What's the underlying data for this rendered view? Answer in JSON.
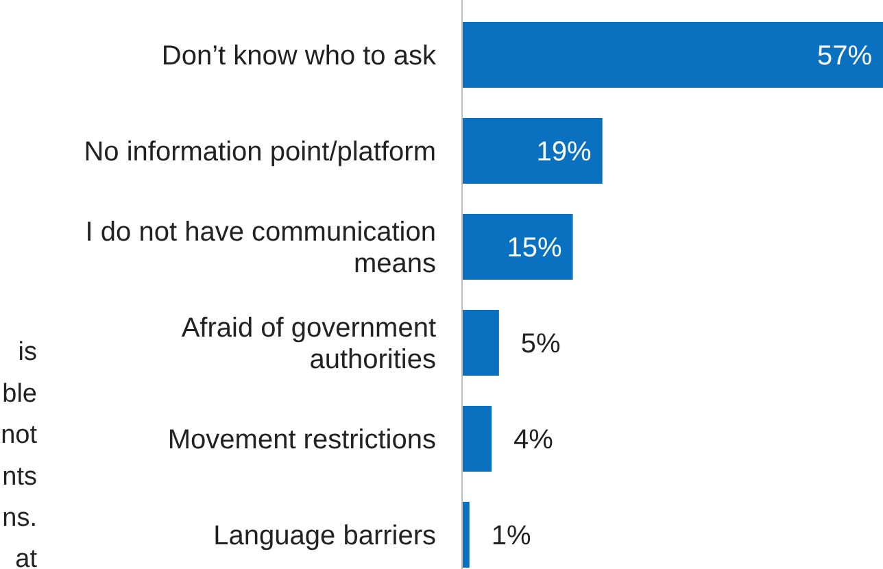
{
  "chart_data": {
    "type": "bar",
    "orientation": "horizontal",
    "categories": [
      "Don’t know who to ask",
      "No information point/platform",
      "I do not have communication means",
      "Afraid of government authorities",
      "Movement restrictions",
      "Language barriers"
    ],
    "values": [
      57,
      19,
      15,
      5,
      4,
      1
    ],
    "value_labels": [
      "57%",
      "19%",
      "15%",
      "5%",
      "4%",
      "1%"
    ],
    "color": "#0a70c0",
    "annotations": [
      "is",
      "ble",
      "not",
      "nts",
      "ns.",
      "at"
    ]
  }
}
